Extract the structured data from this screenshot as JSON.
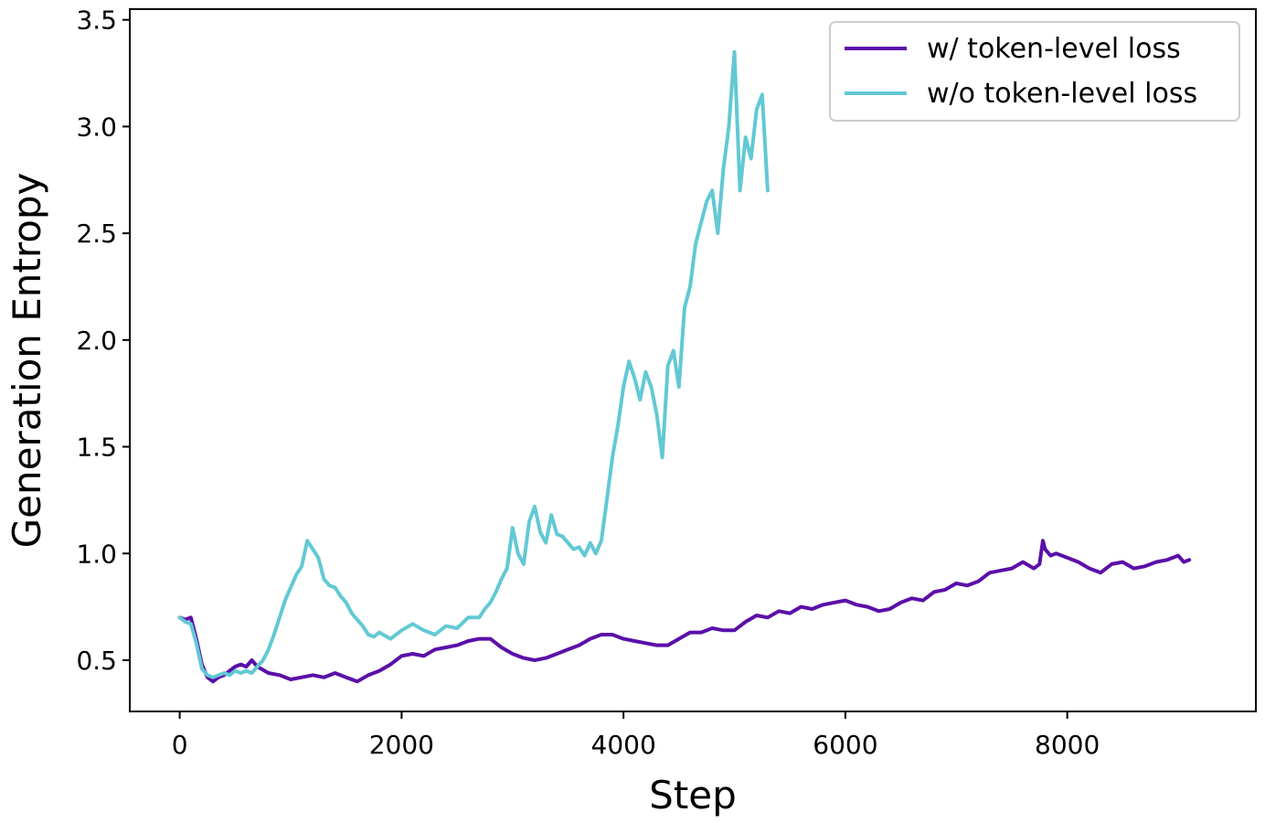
{
  "chart_data": {
    "type": "line",
    "title": "",
    "xlabel": "Step",
    "ylabel": "Generation Entropy",
    "xlim": [
      -450,
      9700
    ],
    "ylim": [
      0.26,
      3.55
    ],
    "xticks": [
      "0",
      "2000",
      "4000",
      "6000",
      "8000"
    ],
    "xtick_values": [
      0,
      2000,
      4000,
      6000,
      8000
    ],
    "yticks": [
      "0.5",
      "1.0",
      "1.5",
      "2.0",
      "2.5",
      "3.0",
      "3.5"
    ],
    "ytick_values": [
      0.5,
      1.0,
      1.5,
      2.0,
      2.5,
      3.0,
      3.5
    ],
    "grid": false,
    "legend_position": "top-right",
    "series": [
      {
        "name": "w/ token-level loss",
        "color": "#5b0fa8",
        "x": [
          0,
          50,
          100,
          150,
          200,
          250,
          300,
          350,
          400,
          450,
          500,
          550,
          600,
          650,
          700,
          800,
          900,
          1000,
          1100,
          1200,
          1300,
          1400,
          1500,
          1600,
          1700,
          1800,
          1900,
          2000,
          2100,
          2200,
          2300,
          2400,
          2500,
          2600,
          2700,
          2800,
          2900,
          3000,
          3100,
          3200,
          3300,
          3400,
          3500,
          3600,
          3700,
          3800,
          3900,
          4000,
          4100,
          4200,
          4300,
          4400,
          4500,
          4600,
          4700,
          4800,
          4900,
          5000,
          5100,
          5200,
          5300,
          5400,
          5500,
          5600,
          5700,
          5800,
          5900,
          6000,
          6100,
          6200,
          6300,
          6400,
          6500,
          6600,
          6700,
          6800,
          6900,
          7000,
          7100,
          7200,
          7300,
          7400,
          7500,
          7600,
          7700,
          7750,
          7780,
          7800,
          7850,
          7900,
          8000,
          8100,
          8200,
          8300,
          8400,
          8500,
          8600,
          8700,
          8800,
          8900,
          9000,
          9050,
          9100
        ],
        "values": [
          0.7,
          0.69,
          0.7,
          0.6,
          0.48,
          0.42,
          0.4,
          0.42,
          0.43,
          0.45,
          0.47,
          0.48,
          0.47,
          0.5,
          0.47,
          0.44,
          0.43,
          0.41,
          0.42,
          0.43,
          0.42,
          0.44,
          0.42,
          0.4,
          0.43,
          0.45,
          0.48,
          0.52,
          0.53,
          0.52,
          0.55,
          0.56,
          0.57,
          0.59,
          0.6,
          0.6,
          0.56,
          0.53,
          0.51,
          0.5,
          0.51,
          0.53,
          0.55,
          0.57,
          0.6,
          0.62,
          0.62,
          0.6,
          0.59,
          0.58,
          0.57,
          0.57,
          0.6,
          0.63,
          0.63,
          0.65,
          0.64,
          0.64,
          0.68,
          0.71,
          0.7,
          0.73,
          0.72,
          0.75,
          0.74,
          0.76,
          0.77,
          0.78,
          0.76,
          0.75,
          0.73,
          0.74,
          0.77,
          0.79,
          0.78,
          0.82,
          0.83,
          0.86,
          0.85,
          0.87,
          0.91,
          0.92,
          0.93,
          0.96,
          0.93,
          0.95,
          1.06,
          1.02,
          0.99,
          1.0,
          0.98,
          0.96,
          0.93,
          0.91,
          0.95,
          0.96,
          0.93,
          0.94,
          0.96,
          0.97,
          0.99,
          0.96,
          0.97
        ]
      },
      {
        "name": "w/o token-level loss",
        "color": "#62c9d3",
        "x": [
          0,
          50,
          100,
          150,
          200,
          250,
          300,
          350,
          400,
          450,
          500,
          550,
          600,
          650,
          700,
          750,
          800,
          850,
          900,
          950,
          1000,
          1050,
          1100,
          1150,
          1200,
          1250,
          1300,
          1350,
          1400,
          1450,
          1500,
          1550,
          1600,
          1650,
          1700,
          1750,
          1800,
          1900,
          2000,
          2100,
          2200,
          2300,
          2400,
          2500,
          2600,
          2700,
          2750,
          2800,
          2850,
          2900,
          2950,
          3000,
          3050,
          3100,
          3150,
          3200,
          3250,
          3300,
          3350,
          3400,
          3450,
          3500,
          3550,
          3600,
          3650,
          3700,
          3750,
          3800,
          3850,
          3900,
          3950,
          4000,
          4050,
          4100,
          4150,
          4200,
          4250,
          4300,
          4350,
          4400,
          4450,
          4500,
          4550,
          4600,
          4650,
          4700,
          4750,
          4800,
          4850,
          4900,
          4950,
          5000,
          5050,
          5100,
          5150,
          5200,
          5250,
          5300
        ],
        "values": [
          0.7,
          0.68,
          0.67,
          0.58,
          0.46,
          0.43,
          0.42,
          0.43,
          0.44,
          0.43,
          0.45,
          0.44,
          0.45,
          0.44,
          0.47,
          0.5,
          0.55,
          0.62,
          0.7,
          0.78,
          0.84,
          0.9,
          0.94,
          1.06,
          1.02,
          0.98,
          0.88,
          0.85,
          0.84,
          0.8,
          0.77,
          0.72,
          0.69,
          0.66,
          0.62,
          0.61,
          0.63,
          0.6,
          0.64,
          0.67,
          0.64,
          0.62,
          0.66,
          0.65,
          0.7,
          0.7,
          0.74,
          0.77,
          0.82,
          0.88,
          0.93,
          1.12,
          1.0,
          0.95,
          1.15,
          1.22,
          1.1,
          1.05,
          1.18,
          1.09,
          1.08,
          1.05,
          1.02,
          1.03,
          0.99,
          1.05,
          1.0,
          1.06,
          1.25,
          1.45,
          1.6,
          1.78,
          1.9,
          1.82,
          1.72,
          1.85,
          1.78,
          1.65,
          1.45,
          1.88,
          1.95,
          1.78,
          2.15,
          2.25,
          2.45,
          2.55,
          2.65,
          2.7,
          2.5,
          2.8,
          3.0,
          3.35,
          2.7,
          2.95,
          2.85,
          3.08,
          3.15,
          2.7
        ]
      }
    ]
  }
}
